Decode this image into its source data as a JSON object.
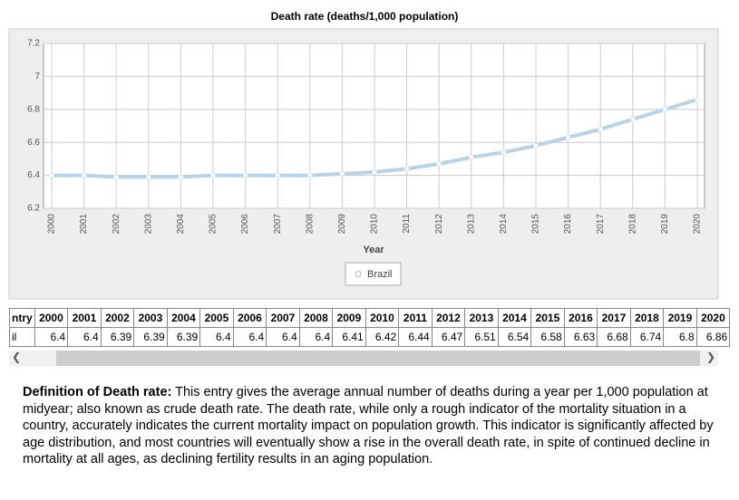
{
  "chart_data": {
    "type": "line",
    "title": "Death rate (deaths/1,000 population)",
    "x_label": "Year",
    "categories": [
      "2000",
      "2001",
      "2002",
      "2003",
      "2004",
      "2005",
      "2006",
      "2007",
      "2008",
      "2009",
      "2010",
      "2011",
      "2012",
      "2013",
      "2014",
      "2015",
      "2016",
      "2017",
      "2018",
      "2019",
      "2020"
    ],
    "series": [
      {
        "name": "Brazil",
        "color": "#b9d3e6",
        "values": [
          6.4,
          6.4,
          6.39,
          6.39,
          6.39,
          6.4,
          6.4,
          6.4,
          6.4,
          6.41,
          6.42,
          6.44,
          6.47,
          6.51,
          6.54,
          6.58,
          6.63,
          6.68,
          6.74,
          6.8,
          6.86
        ]
      }
    ],
    "ylim": [
      6.2,
      7.2
    ],
    "yticks": [
      6.2,
      6.4,
      6.6,
      6.8,
      7,
      7.2
    ],
    "grid": true
  },
  "table": {
    "header": [
      "ntry",
      "2000",
      "2001",
      "2002",
      "2003",
      "2004",
      "2005",
      "2006",
      "2007",
      "2008",
      "2009",
      "2010",
      "2011",
      "2012",
      "2013",
      "2014",
      "2015",
      "2016",
      "2017",
      "2018",
      "2019",
      "2020"
    ],
    "rows": [
      [
        "il",
        6.4,
        6.4,
        6.39,
        6.39,
        6.39,
        6.4,
        6.4,
        6.4,
        6.4,
        6.41,
        6.42,
        6.44,
        6.47,
        6.51,
        6.54,
        6.58,
        6.63,
        6.68,
        6.74,
        6.8,
        6.86
      ]
    ]
  },
  "definition": {
    "term": "Definition of Death rate:",
    "text": "This entry gives the average annual number of deaths during a year per 1,000 population at midyear; also known as crude death rate. The death rate, while only a rough indicator of the mortality situation in a country, accurately indicates the current mortality impact on population growth. This indicator is significantly affected by age distribution, and most countries will eventually show a rise in the overall death rate, in spite of continued decline in mortality at all ages, as declining fertility results in an aging population."
  }
}
